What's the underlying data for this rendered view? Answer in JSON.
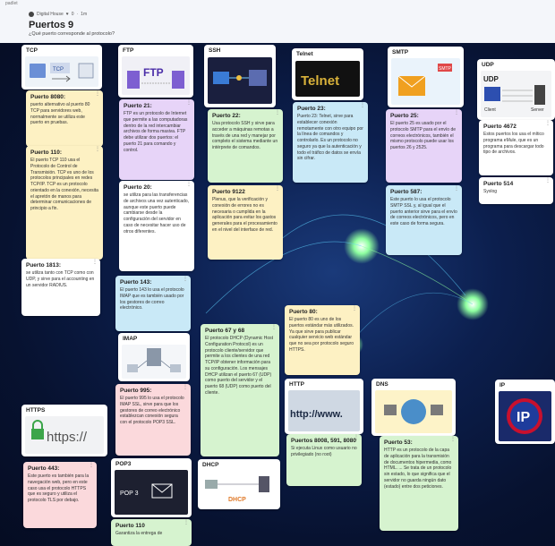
{
  "app": {
    "brand": "padlet",
    "author": "Digital House",
    "likes": "0",
    "age": "1m"
  },
  "board": {
    "title": "Puertos 9",
    "subtitle": "¿Qué puerto corresponde al protocolo?"
  },
  "headers": {
    "tcp": "TCP",
    "ftp": "FTP",
    "ssh": "SSH",
    "telnet": "Telnet",
    "smtp": "SMTP",
    "udp": "UDP",
    "imap": "IMAP",
    "http": "HTTP",
    "dns": "DNS",
    "ip": "IP",
    "https": "HTTPS",
    "pop3": "POP3",
    "dhcp": "DHCP"
  },
  "image_text": {
    "tcp": "TCP",
    "ftp": "FTP",
    "telnet": "Telnet",
    "smtp": "SMTP",
    "udp": "UDP",
    "udp_client": "Client",
    "udp_server": "Server",
    "http": "http://www.",
    "https": "https://",
    "ip": "IP",
    "pop3": "POP 3",
    "dhcp": "DHCP"
  },
  "posts": {
    "p8080": {
      "title": "Puerto 8080:",
      "body": "puerto alternativo al puerto 80 TCP para servidores web, normalmente se utiliza este puerto en pruebas."
    },
    "p110": {
      "title": "Puerto 110:",
      "body": "El puerto TCP 110 usa el Protocolo de Control de Transmisión. TCP es uno de los protocolos principales en redes TCP/IP. TCP es un protocolo orientado en la conexión, necesita el apretón de manos para determinar comunicaciones de principio a fin."
    },
    "p1813": {
      "title": "Puerto 1813:",
      "body": "se utiliza tanto con TCP como con UDP, y sirve para el accounting en un servidor RADIUS."
    },
    "p21": {
      "title": "Puerto 21:",
      "body": "FTP es un protocolo de Internet que permite a las computadoras dentro de la red intercambiar archivos de forma masiva. FTP debe utilizar dos puertos: el puerto 21 para comando y control."
    },
    "p20": {
      "title": "Puerto 20:",
      "body": "se utiliza para las transferencias de archivos una vez autenticado, aunque este puerto puede cambiarse desde la configuración del servidor en caso de necesitar hacer uso de otros diferentes."
    },
    "p143": {
      "title": "Puerto 143:",
      "body": "El puerto 143 lo usa el protocolo IMAP que es también usado por los gestores de correo electrónico."
    },
    "p995": {
      "title": "Puerto 995:",
      "body": "El puerto 995 lo usa el protocolo IMAP SSL, sirve para que los gestores de correo electrónico establezcan conexión segura con el protocolo POP3 SSL."
    },
    "p110b": {
      "title": "Puerto 110",
      "body": "Garantiza la entrega de"
    },
    "p22": {
      "title": "Puerto 22:",
      "body": "Usa protocolo SSH y sirve para acceder a máquinas remotas a través de una red y manejar por completo el sistema mediante un intérprete de comandos."
    },
    "p9122": {
      "title": "Puerto 9122",
      "body": "Plenus, que la verificación y conexión de errores no es necesaria o cumplida en la aplicación para evitar los gastos generales para el procesamiento en el nivel del interface de red."
    },
    "p6768": {
      "title": "Puerto 67 y 68",
      "body": "El protocolo DHCP (Dynamic Host Configuration Protocol) es un protocolo cliente/servidor que permite a los clientes de una red TCP/IP obtener información para su configuración. Los mensajes DHCP utilizan el puerto 67 (UDP) como puerto del servidor y el puerto 68 (UDP) como puerto del cliente."
    },
    "p23": {
      "title": "Puerto 23:",
      "body": "Puerto 23: Telnet, sirve para establecer conexión remotamente con otro equipo por la línea de comandos y controlarlo. Es un protocolo no seguro ya que la autenticación y todo el tráfico de datos se envía sin cifrar."
    },
    "p80": {
      "title": "Puerto 80:",
      "body": "El puerto 80 es uno de los puertos estándar más utilizados. Ya que sirve para publicar cualquier servicio web estándar que no sea por protocolo seguro HTTPS."
    },
    "p8008": {
      "title": "Puertos 8008, 591, 8080",
      "body": "Si ejecuta Linux como usuario no privilegiado (no root)"
    },
    "p25": {
      "title": "Puerto 25:",
      "body": "El puerto 25 es usado por el protocolo SMTP para el envío de correos electrónicos, también el mismo protocolo puede usar los puertos 26 y 2525."
    },
    "p587": {
      "title": "Puerto 587:",
      "body": "Este puerto lo usa el protocolo SMTP SSL y, al igual que el puerto anterior sirve para el envío de correos electrónicos, pero en este caso de forma segura."
    },
    "p53": {
      "title": "Puerto 53:",
      "body": "HTTP es un protocolo de la capa de aplicación para la transmisión de documentos hipermedia, como HTML. ... Se trata de un protocolo sin estado, lo que significa que el servidor no guarda ningún dato (estado) entre dos peticiones."
    },
    "p4672": {
      "title": "Puerto 4672",
      "body": "Estos puertos los usa el mítico programa eMule, que es un programa para descargar todo tipo de archivos."
    },
    "p514": {
      "title": "Puerto 514",
      "body": "Syslog"
    },
    "p443": {
      "title": "Puerto 443:",
      "body": "Este puerto es también para la navegación web, pero en este caso usa el protocolo HTTPS que es seguro y utiliza el protocolo TLS por debajo."
    }
  },
  "colors": {
    "yellow": "#fdf1c3",
    "purple": "#e7d4f8",
    "blue": "#c9e9f7",
    "green": "#d6f3cf",
    "pink": "#fbd9dc",
    "background": "#0c1f4e"
  }
}
